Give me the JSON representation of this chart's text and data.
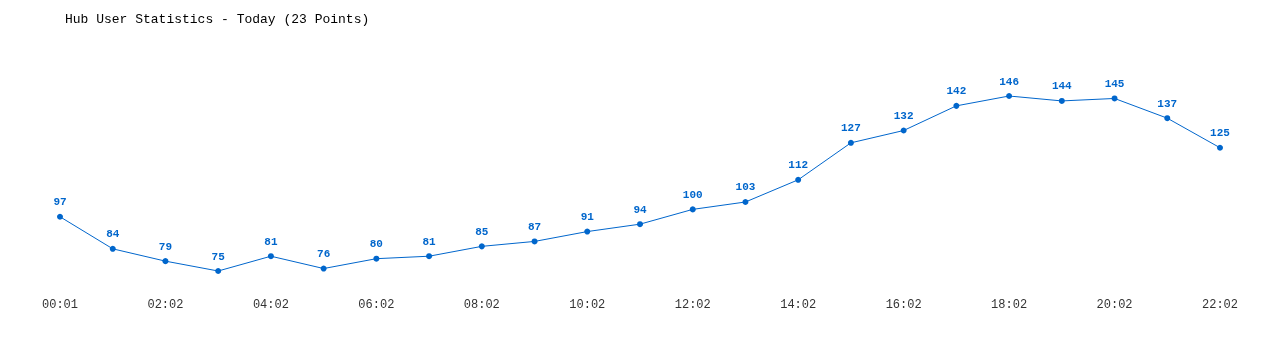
{
  "chart_data": {
    "type": "line",
    "title": "Hub User Statistics - Today (23 Points)",
    "categories": [
      "00:01",
      null,
      "02:02",
      null,
      "04:02",
      null,
      "06:02",
      null,
      "08:02",
      null,
      "10:02",
      null,
      "12:02",
      null,
      "14:02",
      null,
      "16:02",
      null,
      "18:02",
      null,
      "20:02",
      null,
      "22:02"
    ],
    "series": [
      {
        "color": "#0066cc",
        "values": [
          97,
          84,
          79,
          75,
          81,
          76,
          80,
          81,
          85,
          87,
          91,
          94,
          100,
          103,
          112,
          127,
          132,
          142,
          146,
          144,
          145,
          137,
          125
        ]
      }
    ],
    "data_labels": true,
    "marker": "circle",
    "line_style": "solid",
    "grid": false,
    "tick_labels": "x"
  }
}
